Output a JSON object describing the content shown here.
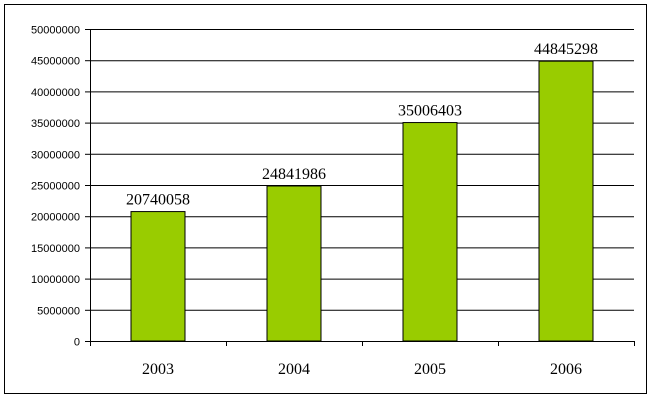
{
  "chart_data": {
    "type": "bar",
    "categories": [
      "2003",
      "2004",
      "2005",
      "2006"
    ],
    "values": [
      20740058,
      24841986,
      35006403,
      44845298
    ],
    "data_labels": [
      "20740058",
      "24841986",
      "35006403",
      "44845298"
    ],
    "title": "",
    "xlabel": "",
    "ylabel": "",
    "ylim": [
      0,
      50000000
    ],
    "yticks": [
      0,
      5000000,
      10000000,
      15000000,
      20000000,
      25000000,
      30000000,
      35000000,
      40000000,
      45000000,
      50000000
    ],
    "ytick_labels": [
      "0",
      "5000000",
      "10000000",
      "15000000",
      "20000000",
      "25000000",
      "30000000",
      "35000000",
      "40000000",
      "45000000",
      "50000000"
    ],
    "grid": true,
    "legend": "none",
    "colors": {
      "bar": "#99CC00",
      "bar_outline": "#000000",
      "grid": "#000000"
    }
  }
}
